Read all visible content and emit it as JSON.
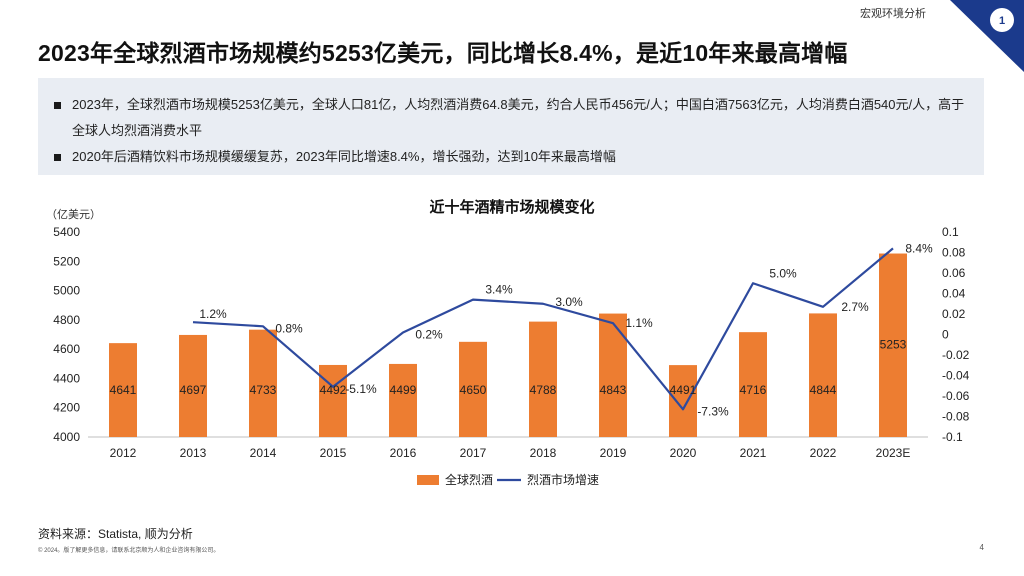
{
  "header": {
    "section_label": "宏观环境分析",
    "page_badge": "1",
    "title": "2023年全球烈酒市场规模约5253亿美元，同比增长8.4%，是近10年来最高增幅"
  },
  "summary": {
    "bullets": [
      "2023年，全球烈酒市场规模5253亿美元，全球人口81亿，人均烈酒消费64.8美元，约合人民币456元/人；中国白酒7563亿元，人均消费白酒540元/人，高于全球人均烈酒消费水平",
      "2020年后酒精饮料市场规模缓缓复苏，2023年同比增速8.4%，增长强劲，达到10年来最高增幅"
    ]
  },
  "chart_data": {
    "type": "bar",
    "title": "近十年酒精市场规模变化",
    "ylabel": "（亿美元）",
    "categories": [
      "2012",
      "2013",
      "2014",
      "2015",
      "2016",
      "2017",
      "2018",
      "2019",
      "2020",
      "2021",
      "2022",
      "2023E"
    ],
    "series": [
      {
        "name": "全球烈酒",
        "kind": "bar",
        "axis": "left",
        "values": [
          4641,
          4697,
          4733,
          4492,
          4499,
          4650,
          4788,
          4843,
          4491,
          4716,
          4844,
          5253
        ],
        "labels": [
          "4641",
          "4697",
          "4733",
          "4492",
          "4499",
          "4650",
          "4788",
          "4843",
          "4491",
          "4716",
          "4844",
          "5253"
        ]
      },
      {
        "name": "烈酒市场增速",
        "kind": "line",
        "axis": "right",
        "values": [
          null,
          0.012,
          0.008,
          -0.051,
          0.002,
          0.034,
          0.03,
          0.011,
          -0.073,
          0.05,
          0.027,
          0.084
        ],
        "labels": [
          "",
          "1.2%",
          "0.8%",
          "-5.1%",
          "0.2%",
          "3.4%",
          "3.0%",
          "1.1%",
          "-7.3%",
          "5.0%",
          "2.7%",
          "8.4%"
        ]
      }
    ],
    "ylim": [
      4000,
      5400
    ],
    "yticks": [
      "4000",
      "4200",
      "4400",
      "4600",
      "4800",
      "5000",
      "5200",
      "5400"
    ],
    "y2lim": [
      -0.1,
      0.1
    ],
    "y2ticks": [
      "-0.1",
      "-0.08",
      "-0.06",
      "-0.04",
      "-0.02",
      "0",
      "0.02",
      "0.04",
      "0.06",
      "0.08",
      "0.1"
    ],
    "legend": [
      "全球烈酒",
      "烈酒市场增速"
    ],
    "legend_position": "bottom",
    "colors": {
      "bar": "#ed7d31",
      "line": "#2e4a9e"
    }
  },
  "footer": {
    "source": "资料来源：Statista, 顺为分析",
    "copyright": "© 2024。版了解更多信息，请联系北京顺为人和企业咨询有限公司。",
    "page_number": "4"
  },
  "colors": {
    "accent_navy": "#1b3a8c",
    "panel_bg": "#e9edf3"
  }
}
